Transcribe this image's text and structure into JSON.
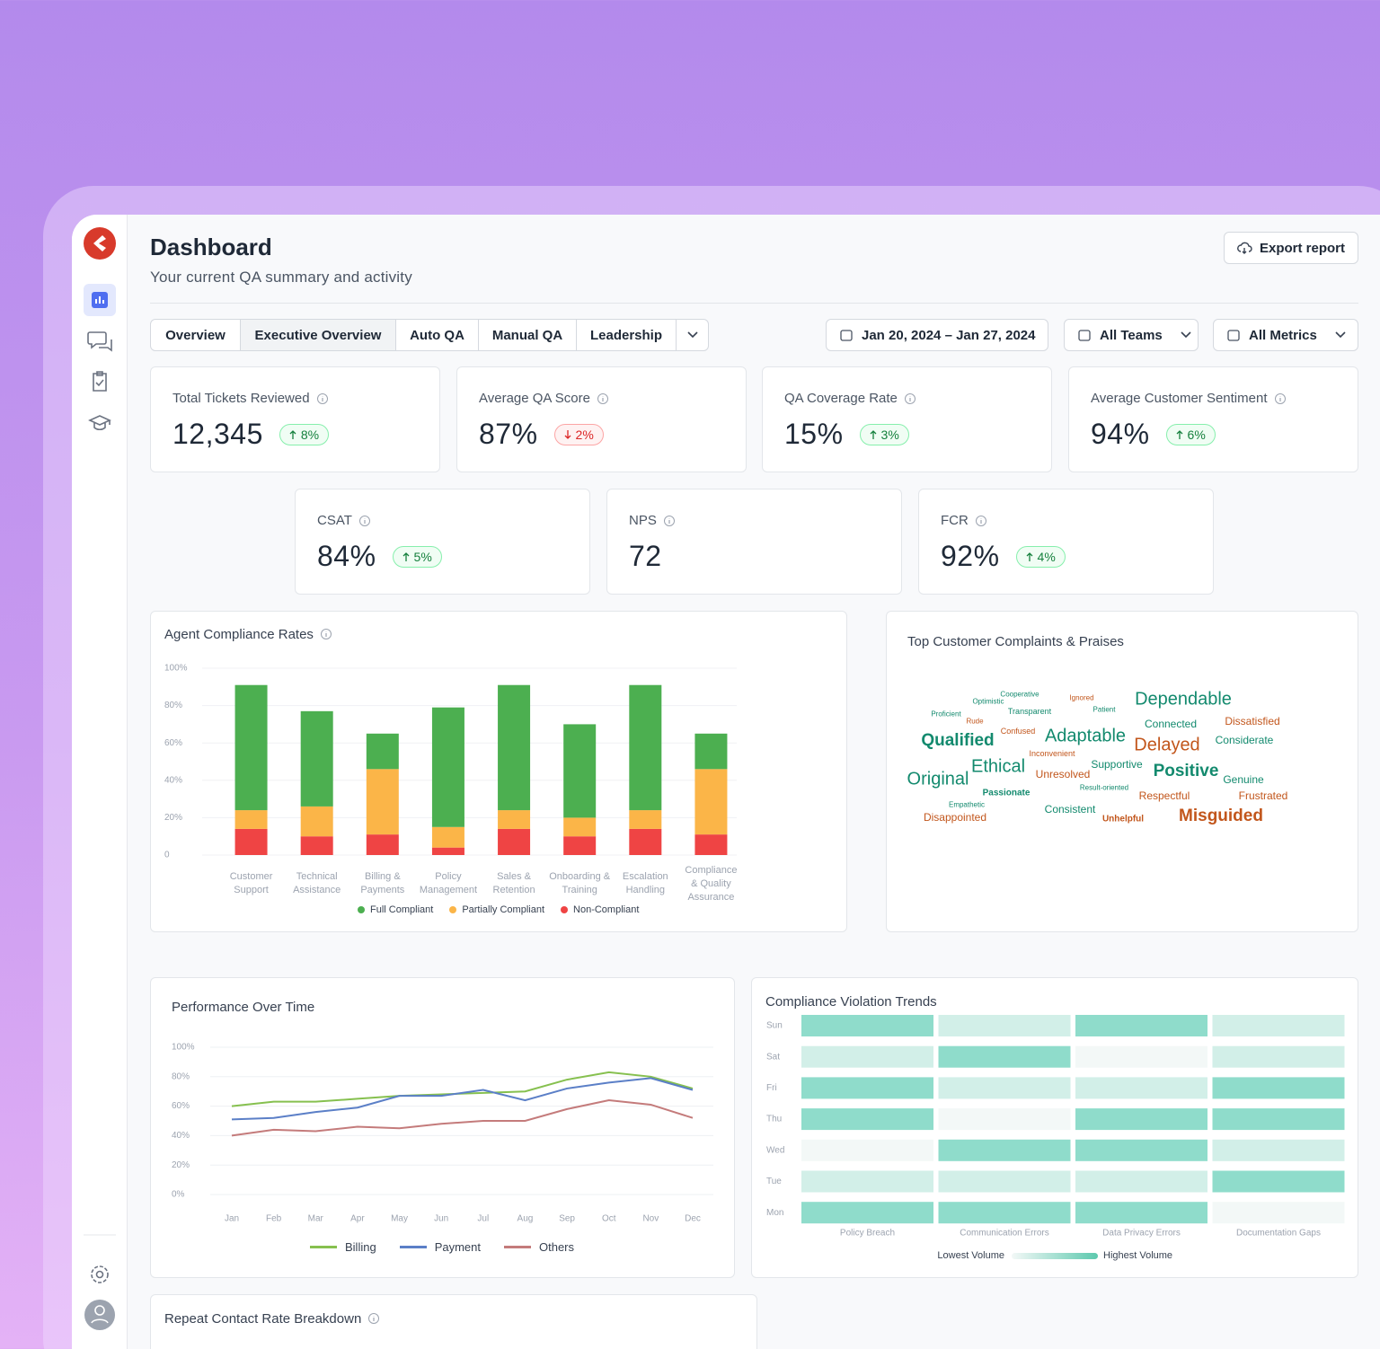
{
  "header": {
    "title": "Dashboard",
    "subtitle": "Your current QA summary and activity",
    "export": "Export report"
  },
  "tabs": [
    "Overview",
    "Executive Overview",
    "Auto QA",
    "Manual QA",
    "Leadership"
  ],
  "active_tab": 1,
  "filters": {
    "date": "Jan 20, 2024 – Jan 27, 2024",
    "teams": "All Teams",
    "metrics": "All Metrics"
  },
  "kpis": [
    {
      "label": "Total Tickets Reviewed",
      "value": "12,345",
      "change": "8%",
      "direction": "up"
    },
    {
      "label": "Average QA Score",
      "value": "87%",
      "change": "2%",
      "direction": "down"
    },
    {
      "label": "QA Coverage Rate",
      "value": "15%",
      "change": "3%",
      "direction": "up"
    },
    {
      "label": "Average Customer Sentiment",
      "value": "94%",
      "change": "6%",
      "direction": "up"
    },
    {
      "label": "CSAT",
      "value": "84%",
      "change": "5%",
      "direction": "up"
    },
    {
      "label": "NPS",
      "value": "72"
    },
    {
      "label": "FCR",
      "value": "92%",
      "change": "4%",
      "direction": "up"
    }
  ],
  "chart_data": [
    {
      "type": "stacked_bar",
      "title": "Agent Compliance Rates",
      "categories": [
        "Customer Support",
        "Technical Assistance",
        "Billing & Payments",
        "Policy Management",
        "Sales & Retention",
        "Onboarding & Training",
        "Escalation Handling",
        "Compliance & Quality Assurance"
      ],
      "series": [
        {
          "name": "Full Compliant",
          "color": "#4caf50",
          "values": [
            67,
            51,
            19,
            64,
            67,
            50,
            67,
            19
          ]
        },
        {
          "name": "Partially Compliant",
          "color": "#fbb548",
          "values": [
            10,
            16,
            35,
            11,
            10,
            10,
            10,
            35
          ]
        },
        {
          "name": "Non-Compliant",
          "color": "#ef4444",
          "values": [
            14,
            10,
            11,
            4,
            14,
            10,
            14,
            11
          ]
        }
      ],
      "ylim": [
        0,
        100
      ],
      "yticks": [
        0,
        {
          "value": 20,
          "label": "20%"
        },
        {
          "value": 40,
          "label": "40%"
        },
        {
          "value": 60,
          "label": "60%"
        },
        {
          "value": 80,
          "label": "80%"
        },
        {
          "value": 100,
          "label": "100%"
        }
      ],
      "grid": true
    },
    {
      "type": "line",
      "title": "Performance Over Time",
      "categories": [
        "Jan",
        "Feb",
        "Mar",
        "Apr",
        "May",
        "Jun",
        "Jul",
        "Aug",
        "Sep",
        "Oct",
        "Nov",
        "Dec"
      ],
      "series": [
        {
          "name": "Billing",
          "color": "#86c04f",
          "values": [
            60,
            63,
            63,
            65,
            67,
            68,
            69,
            70,
            78,
            83,
            80,
            72
          ]
        },
        {
          "name": "Payment",
          "color": "#5b7fc7",
          "values": [
            51,
            52,
            56,
            59,
            67,
            67,
            71,
            64,
            72,
            76,
            79,
            71
          ]
        },
        {
          "name": "Others",
          "color": "#c47b7b",
          "values": [
            40,
            44,
            43,
            46,
            45,
            48,
            50,
            50,
            58,
            64,
            61,
            52
          ]
        }
      ],
      "ylim": [
        0,
        100
      ],
      "yticks": [
        {
          "value": 0,
          "label": "0%"
        },
        {
          "value": 20,
          "label": "20%"
        },
        {
          "value": 40,
          "label": "40%"
        },
        {
          "value": 60,
          "label": "60%"
        },
        {
          "value": 80,
          "label": "80%"
        },
        {
          "value": 100,
          "label": "100%"
        }
      ],
      "grid": true
    },
    {
      "type": "heatmap",
      "title": "Compliance Violation Trends",
      "rows": [
        "Sun",
        "Sat",
        "Fri",
        "Thu",
        "Wed",
        "Tue",
        "Mon"
      ],
      "columns": [
        "Policy Breach",
        "Communication Errors",
        "Data Privacy Errors",
        "Documentation Gaps"
      ],
      "values": [
        [
          3,
          1,
          3,
          1
        ],
        [
          1,
          3,
          0,
          1
        ],
        [
          3,
          1,
          1,
          3
        ],
        [
          3,
          0,
          3,
          3
        ],
        [
          0,
          3,
          3,
          1
        ],
        [
          1,
          1,
          1,
          3
        ],
        [
          3,
          3,
          3,
          0
        ]
      ],
      "low_color": "#f3f8f7",
      "high_color": "#8fdccb",
      "legend_low": "Lowest Volume",
      "legend_high": "Highest Volume"
    }
  ],
  "word_cloud": {
    "title": "Top Customer Complaints & Praises",
    "words": [
      {
        "text": "Cooperative",
        "color": "#138a6e"
      },
      {
        "text": "Optimistic",
        "color": "#138a6e"
      },
      {
        "text": "Ignored",
        "color": "#c2561c"
      },
      {
        "text": "Dependable",
        "color": "#138a6e"
      },
      {
        "text": "Proficient",
        "color": "#138a6e"
      },
      {
        "text": "Transparent",
        "color": "#138a6e"
      },
      {
        "text": "Patient",
        "color": "#138a6e"
      },
      {
        "text": "Rude",
        "color": "#c2561c"
      },
      {
        "text": "Connected",
        "color": "#138a6e"
      },
      {
        "text": "Dissatisfied",
        "color": "#c2561c"
      },
      {
        "text": "Confused",
        "color": "#c2561c"
      },
      {
        "text": "Adaptable",
        "color": "#138a6e"
      },
      {
        "text": "Qualified",
        "color": "#138a6e"
      },
      {
        "text": "Delayed",
        "color": "#c2561c"
      },
      {
        "text": "Considerate",
        "color": "#138a6e"
      },
      {
        "text": "Inconvenient",
        "color": "#c2561c"
      },
      {
        "text": "Ethical",
        "color": "#138a6e"
      },
      {
        "text": "Supportive",
        "color": "#138a6e"
      },
      {
        "text": "Original",
        "color": "#138a6e"
      },
      {
        "text": "Unresolved",
        "color": "#c2561c"
      },
      {
        "text": "Positive",
        "color": "#138a6e"
      },
      {
        "text": "Genuine",
        "color": "#138a6e"
      },
      {
        "text": "Result-oriented",
        "color": "#138a6e"
      },
      {
        "text": "Passionate",
        "color": "#138a6e"
      },
      {
        "text": "Respectful",
        "color": "#c2561c"
      },
      {
        "text": "Frustrated",
        "color": "#c2561c"
      },
      {
        "text": "Empathetic",
        "color": "#138a6e"
      },
      {
        "text": "Consistent",
        "color": "#138a6e"
      },
      {
        "text": "Disappointed",
        "color": "#c2561c"
      },
      {
        "text": "Unhelpful",
        "color": "#c2561c"
      },
      {
        "text": "Misguided",
        "color": "#c2561c"
      }
    ]
  },
  "repeat_contact": {
    "title": "Repeat Contact Rate Breakdown"
  }
}
